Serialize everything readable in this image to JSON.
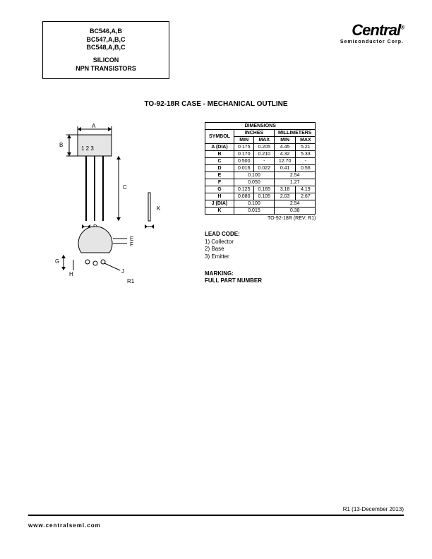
{
  "header": {
    "part_lines": [
      "BC546,A,B",
      "BC547,A,B,C",
      "BC548,A,B,C"
    ],
    "type_lines": [
      "SILICON",
      "NPN TRANSISTORS"
    ],
    "logo_main": "Central",
    "logo_sub": "Semiconductor Corp.",
    "logo_tm": "®"
  },
  "title": "TO-92-18R CASE - MECHANICAL OUTLINE",
  "diagram": {
    "labels": {
      "A": "A",
      "B": "B",
      "C": "C",
      "D": "D",
      "E": "E",
      "F": "F",
      "G": "G",
      "H": "H",
      "J": "J",
      "K": "K",
      "R1": "R1",
      "pins": "1 2 3"
    },
    "stroke": "#000000",
    "fill_body": "#e5e5e5"
  },
  "dimensions": {
    "title": "DIMENSIONS",
    "unit_headers": [
      "INCHES",
      "MILLIMETERS"
    ],
    "col_headers": [
      "SYMBOL",
      "MIN",
      "MAX",
      "MIN",
      "MAX"
    ],
    "rows": [
      {
        "sym": "A (DIA)",
        "in_min": "0.175",
        "in_max": "0.205",
        "mm_min": "4.45",
        "mm_max": "5.21"
      },
      {
        "sym": "B",
        "in_min": "0.170",
        "in_max": "0.210",
        "mm_min": "4.32",
        "mm_max": "5.33"
      },
      {
        "sym": "C",
        "in_min": "0.500",
        "in_max": "-",
        "mm_min": "12.70",
        "mm_max": "-"
      },
      {
        "sym": "D",
        "in_min": "0.016",
        "in_max": "0.022",
        "mm_min": "0.41",
        "mm_max": "0.56"
      },
      {
        "sym": "E",
        "in_min": "0.100",
        "in_max": "",
        "mm_min": "2.54",
        "mm_max": "",
        "span": true
      },
      {
        "sym": "F",
        "in_min": "0.050",
        "in_max": "",
        "mm_min": "1.27",
        "mm_max": "",
        "span": true
      },
      {
        "sym": "G",
        "in_min": "0.125",
        "in_max": "0.165",
        "mm_min": "3.18",
        "mm_max": "4.19"
      },
      {
        "sym": "H",
        "in_min": "0.080",
        "in_max": "0.105",
        "mm_min": "2.03",
        "mm_max": "2.67"
      },
      {
        "sym": "J (DIA)",
        "in_min": "0.100",
        "in_max": "",
        "mm_min": "2.54",
        "mm_max": "",
        "span": true
      },
      {
        "sym": "K",
        "in_min": "0.015",
        "in_max": "",
        "mm_min": "0.38",
        "mm_max": "",
        "span": true
      }
    ],
    "rev": "TO-92-18R (REV: R1)"
  },
  "lead_code": {
    "hdr": "LEAD CODE:",
    "items": [
      "1) Collector",
      "2) Base",
      "3) Emitter"
    ]
  },
  "marking": {
    "hdr": "MARKING:",
    "text": "FULL PART NUMBER"
  },
  "footer": {
    "rev": "R1 (13-December 2013)",
    "url": "www.centralsemi.com"
  }
}
